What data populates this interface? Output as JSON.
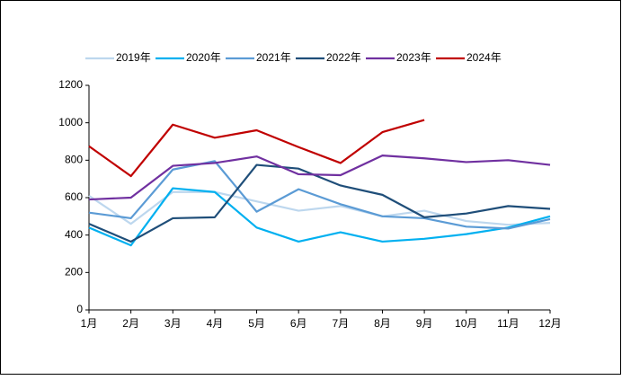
{
  "chart_data": {
    "type": "line",
    "categories": [
      "1月",
      "2月",
      "3月",
      "4月",
      "5月",
      "6月",
      "7月",
      "8月",
      "9月",
      "10月",
      "11月",
      "12月"
    ],
    "series": [
      {
        "name": "2019年",
        "color": "#bdd7ee",
        "values": [
          610,
          460,
          630,
          630,
          580,
          530,
          555,
          500,
          530,
          475,
          455,
          465
        ]
      },
      {
        "name": "2020年",
        "color": "#00b0f0",
        "values": [
          440,
          345,
          650,
          630,
          440,
          365,
          415,
          365,
          380,
          405,
          440,
          500
        ]
      },
      {
        "name": "2021年",
        "color": "#5b9bd5",
        "values": [
          520,
          490,
          750,
          795,
          525,
          645,
          565,
          500,
          490,
          445,
          435,
          485
        ]
      },
      {
        "name": "2022年",
        "color": "#1f4e79",
        "values": [
          460,
          365,
          490,
          495,
          775,
          755,
          665,
          615,
          495,
          515,
          555,
          540
        ]
      },
      {
        "name": "2023年",
        "color": "#7030a0",
        "values": [
          590,
          600,
          770,
          785,
          820,
          725,
          720,
          825,
          810,
          790,
          800,
          775
        ]
      },
      {
        "name": "2024年",
        "color": "#c00000",
        "values": [
          875,
          715,
          990,
          920,
          960,
          870,
          785,
          950,
          1015,
          null,
          null,
          null
        ]
      }
    ],
    "ylim": [
      0,
      1200
    ],
    "yticks": [
      0,
      200,
      400,
      600,
      800,
      1000,
      1200
    ],
    "legend": "top"
  }
}
